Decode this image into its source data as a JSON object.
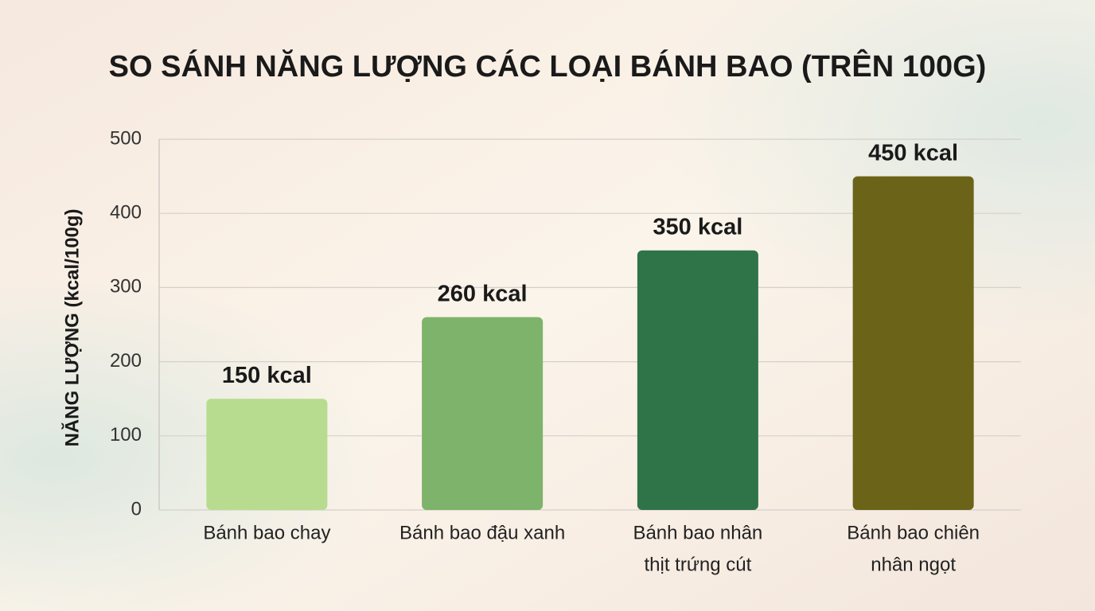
{
  "chart_data": {
    "type": "bar",
    "title": "SO SÁNH NĂNG LƯỢNG CÁC LOẠI BÁNH BAO (TRÊN 100G)",
    "y_label": "NĂNG LƯỢNG (kcal/100g)",
    "categories": [
      [
        "Bánh bao chay"
      ],
      [
        "Bánh bao đậu xanh"
      ],
      [
        "Bánh bao nhân",
        "thịt trứng cút"
      ],
      [
        "Bánh bao chiên",
        "nhân ngọt"
      ]
    ],
    "values": [
      150,
      260,
      350,
      450
    ],
    "value_labels": [
      "150 kcal",
      "260 kcal",
      "350 kcal",
      "450 kcal"
    ],
    "colors": [
      "#b7dc8f",
      "#7db36a",
      "#2f7448",
      "#6b6318"
    ],
    "ylim": [
      0,
      500
    ],
    "yticks": [
      0,
      100,
      200,
      300,
      400,
      500
    ],
    "grid": true
  }
}
